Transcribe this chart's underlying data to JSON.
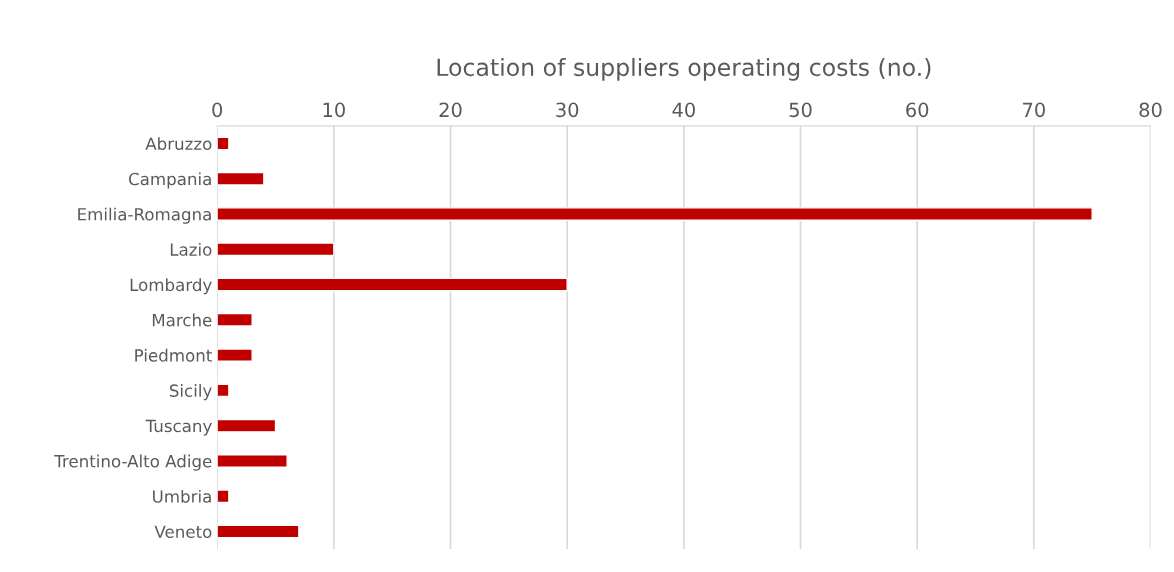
{
  "chart_data": {
    "type": "bar",
    "orientation": "horizontal",
    "title": "Location of suppliers operating costs (no.)",
    "categories": [
      "Abruzzo",
      "Campania",
      "Emilia-Romagna",
      "Lazio",
      "Lombardy",
      "Marche",
      "Piedmont",
      "Sicily",
      "Tuscany",
      "Trentino-Alto Adige",
      "Umbria",
      "Veneto"
    ],
    "values": [
      1,
      4,
      75,
      10,
      30,
      3,
      3,
      1,
      5,
      6,
      1,
      7
    ],
    "color": "#c00000",
    "xlim": [
      0,
      80
    ],
    "xticks": [
      0,
      10,
      20,
      30,
      40,
      50,
      60,
      70,
      80
    ],
    "grid": "x",
    "legend": false
  }
}
